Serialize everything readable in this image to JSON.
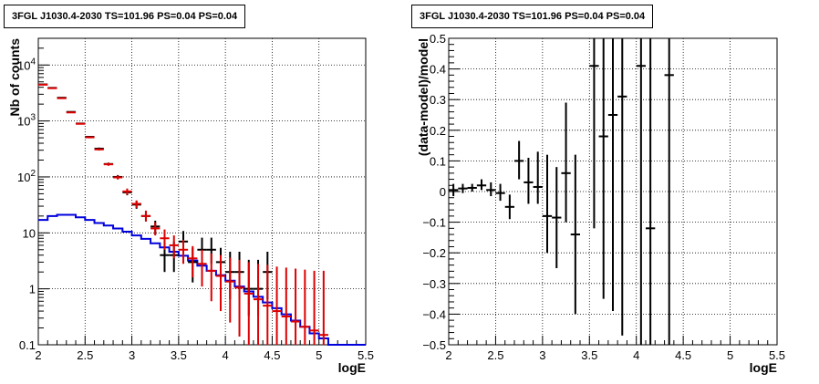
{
  "panels": [
    {
      "title": "3FGL J1030.4-2030 TS=101.96 PS=0.04 PS=0.04"
    },
    {
      "title": "3FGL J1030.4-2030 TS=101.96 PS=0.04 PS=0.04"
    }
  ],
  "colors": {
    "data": "#000000",
    "model_points": "#dd0000",
    "background_model": "#0000dd",
    "grid": "#000000"
  },
  "chart_data": [
    {
      "type": "scatter",
      "title": "3FGL J1030.4-2030 TS=101.96 PS=0.04 PS=0.04",
      "xlabel": "logE",
      "ylabel": "Nb of counts",
      "xlim": [
        2,
        5.5
      ],
      "ylim": [
        0.1,
        30000
      ],
      "yscale": "log",
      "grid": true,
      "x_ticks": [
        "2",
        "2.5",
        "3",
        "3.5",
        "4",
        "4.5",
        "5",
        "5.5"
      ],
      "y_ticks": [
        "0.1",
        "1",
        "10",
        "10^2",
        "10^3",
        "10^4"
      ],
      "bin_width": 0.1,
      "series": [
        {
          "type": "errorbar",
          "x": [
            2.05,
            2.15,
            2.25,
            2.35,
            2.45,
            2.55,
            2.65,
            2.75,
            2.85,
            2.95,
            3.05,
            3.15,
            3.25,
            3.35,
            3.45,
            3.55,
            3.65,
            3.75,
            3.85,
            3.95,
            4.05,
            4.15,
            4.25,
            4.35,
            4.45
          ],
          "values": [
            4500,
            3900,
            2600,
            1450,
            900,
            520,
            320,
            170,
            100,
            53,
            32,
            20,
            13,
            4,
            4,
            7,
            3,
            5,
            5,
            3,
            2,
            2,
            1,
            1,
            2
          ],
          "err_low": [
            4400,
            3820,
            2540,
            1410,
            870,
            500,
            305,
            160,
            92,
            47,
            27,
            16,
            9.5,
            2,
            2,
            4.2,
            1.3,
            2.8,
            2.8,
            1.3,
            0.65,
            0.65,
            0.33,
            0.33,
            0.65
          ],
          "err_high": [
            4600,
            3980,
            2660,
            1490,
            930,
            540,
            335,
            180,
            108,
            59,
            37,
            24,
            16.5,
            7,
            7,
            10.8,
            5.4,
            8.2,
            8.2,
            5.4,
            4.6,
            4.6,
            3.3,
            3.3,
            4.6
          ]
        },
        {
          "type": "errorbar",
          "x": [
            2.05,
            2.15,
            2.25,
            2.35,
            2.45,
            2.55,
            2.65,
            2.75,
            2.85,
            2.95,
            3.05,
            3.15,
            3.25,
            3.35,
            3.45,
            3.55,
            3.65,
            3.75,
            3.85,
            3.95,
            4.05,
            4.15,
            4.25,
            4.35,
            4.45,
            4.55,
            4.65,
            4.75,
            4.85,
            4.95,
            5.05
          ],
          "values": [
            4450,
            3850,
            2550,
            1420,
            890,
            510,
            310,
            168,
            98,
            55,
            33,
            20,
            12,
            8,
            6,
            5,
            3.5,
            2.8,
            2.1,
            1.7,
            1.35,
            1.05,
            0.82,
            0.65,
            0.5,
            0.4,
            0.32,
            0.26,
            0.21,
            0.18,
            0.15
          ],
          "err_low": [
            4380,
            3790,
            2500,
            1390,
            865,
            490,
            296,
            158,
            90,
            48,
            28,
            16,
            9,
            5,
            3.5,
            2.8,
            1.6,
            1.1,
            0.6,
            0.4,
            0.25,
            0.14,
            0.1,
            0.1,
            0.1,
            0.1,
            0.1,
            0.1,
            0.1,
            0.1,
            0.1
          ],
          "err_high": [
            4520,
            3910,
            2600,
            1450,
            915,
            530,
            325,
            178,
            106,
            62,
            38,
            25,
            15.5,
            11.5,
            9,
            7.5,
            5.8,
            5,
            4.3,
            4,
            3.6,
            3.3,
            3,
            2.8,
            2.7,
            2.5,
            2.4,
            2.3,
            2.2,
            2.1,
            2.1
          ]
        },
        {
          "type": "step",
          "x_edges": [
            2.0,
            2.1,
            2.2,
            2.3,
            2.4,
            2.5,
            2.6,
            2.7,
            2.8,
            2.9,
            3.0,
            3.1,
            3.2,
            3.3,
            3.4,
            3.5,
            3.6,
            3.7,
            3.8,
            3.9,
            4.0,
            4.1,
            4.2,
            4.3,
            4.4,
            4.5,
            4.6,
            4.7,
            4.8,
            4.9,
            5.0,
            5.1,
            5.2,
            5.3,
            5.4,
            5.5
          ],
          "values": [
            17,
            20,
            21,
            21,
            19,
            17,
            15,
            13.5,
            12,
            10.5,
            9,
            7.8,
            6.5,
            5.5,
            4.6,
            3.9,
            3.2,
            2.6,
            2.1,
            1.75,
            1.4,
            1.1,
            0.9,
            0.72,
            0.57,
            0.45,
            0.35,
            0.27,
            0.21,
            0.16,
            0.13,
            0.1,
            0.1,
            0.1,
            0.1
          ]
        }
      ]
    },
    {
      "type": "scatter",
      "title": "3FGL J1030.4-2030 TS=101.96 PS=0.04 PS=0.04",
      "xlabel": "logE",
      "ylabel": "(data-model)/model",
      "xlim": [
        2,
        5.5
      ],
      "ylim": [
        -0.5,
        0.5
      ],
      "grid": true,
      "x_ticks": [
        "2",
        "2.5",
        "3",
        "3.5",
        "4",
        "4.5",
        "5",
        "5.5"
      ],
      "y_ticks": [
        "−0.5",
        "−0.4",
        "−0.3",
        "−0.2",
        "−0.1",
        "0",
        "0.1",
        "0.2",
        "0.3",
        "0.4",
        "0.5"
      ],
      "bin_width": 0.1,
      "series": [
        {
          "type": "errorbar",
          "x": [
            2.05,
            2.15,
            2.25,
            2.35,
            2.45,
            2.55,
            2.65,
            2.75,
            2.85,
            2.95,
            3.05,
            3.15,
            3.25,
            3.35,
            3.55,
            3.65,
            3.75,
            3.85,
            4.05,
            4.15,
            4.35
          ],
          "values": [
            0.005,
            0.01,
            0.012,
            0.02,
            0.005,
            -0.005,
            -0.05,
            0.1,
            0.03,
            0.015,
            -0.08,
            -0.085,
            0.06,
            -0.14,
            0.41,
            0.18,
            0.25,
            0.31,
            0.41,
            -0.12,
            0.38
          ],
          "err_low": [
            -0.015,
            -0.005,
            0.0,
            0.005,
            -0.015,
            -0.03,
            -0.09,
            0.04,
            -0.04,
            -0.04,
            -0.2,
            -0.25,
            -0.1,
            -0.4,
            -0.12,
            -0.35,
            -0.39,
            -0.47,
            -0.5,
            -0.5,
            -0.5
          ],
          "err_high": [
            0.025,
            0.025,
            0.025,
            0.04,
            0.03,
            0.025,
            -0.01,
            0.165,
            0.11,
            0.13,
            0.12,
            0.08,
            0.29,
            0.12,
            0.5,
            0.5,
            0.5,
            0.5,
            0.5,
            0.5,
            0.5
          ]
        }
      ]
    }
  ]
}
